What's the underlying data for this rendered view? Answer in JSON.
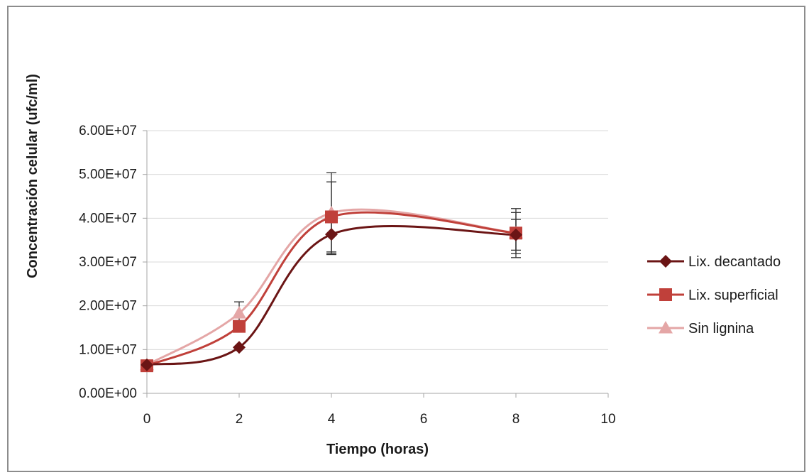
{
  "chart_data": {
    "type": "line",
    "title": "",
    "xlabel": "Tiempo (horas)",
    "ylabel": "Concentración celular (ufc/ml)",
    "xlim": [
      0,
      10
    ],
    "ylim": [
      0,
      60000000
    ],
    "x_ticks": [
      0,
      2,
      4,
      6,
      8,
      10
    ],
    "x_tick_labels": [
      "0",
      "2",
      "4",
      "6",
      "8",
      "10"
    ],
    "y_ticks": [
      0,
      10000000,
      20000000,
      30000000,
      40000000,
      50000000,
      60000000
    ],
    "y_tick_labels": [
      "0.00E+00",
      "1.00E+07",
      "2.00E+07",
      "3.00E+07",
      "4.00E+07",
      "5.00E+07",
      "6.00E+07"
    ],
    "grid": "horizontal",
    "legend_position": "right",
    "smooth": true,
    "x": [
      0,
      2,
      4,
      8
    ],
    "series": [
      {
        "name": "Lix. decantado",
        "color": "#6b1515",
        "marker": "diamond",
        "values": [
          6500000,
          10500000,
          36300000,
          36200000
        ],
        "error": [
          0,
          0,
          4600000,
          3500000
        ]
      },
      {
        "name": "Lix. superficial",
        "color": "#c0403a",
        "marker": "square",
        "values": [
          6300000,
          15300000,
          40300000,
          36600000
        ],
        "error": [
          0,
          0,
          8000000,
          5600000
        ]
      },
      {
        "name": "Sin lignina",
        "color": "#e4a6a6",
        "marker": "triangle",
        "values": [
          6500000,
          18300000,
          41200000,
          36600000
        ],
        "error": [
          0,
          2600000,
          9200000,
          4700000
        ]
      }
    ]
  }
}
